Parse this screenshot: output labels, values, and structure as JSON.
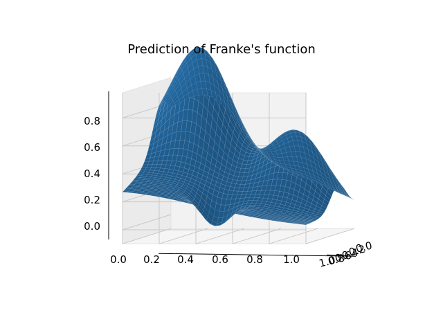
{
  "chart_data": {
    "type": "surface3d",
    "title": "Prediction of Franke's function",
    "function": "Franke",
    "surface_color": "#1f5c8d",
    "edge_color": "#8fb3d1",
    "pane_color": "#f2f2f2",
    "grid": true,
    "x_ticks": [
      "0.0",
      "0.2",
      "0.4",
      "0.6",
      "0.8",
      "1.0"
    ],
    "y_ticks": [
      "0.0",
      "0.2",
      "0.4",
      "0.6",
      "0.8",
      "1.0"
    ],
    "z_ticks": [
      "0.0",
      "0.2",
      "0.4",
      "0.6",
      "0.8"
    ],
    "xlim": [
      0,
      1
    ],
    "ylim": [
      0,
      1
    ],
    "zlim": [
      -0.1,
      0.98
    ],
    "grid_resolution": 40
  }
}
